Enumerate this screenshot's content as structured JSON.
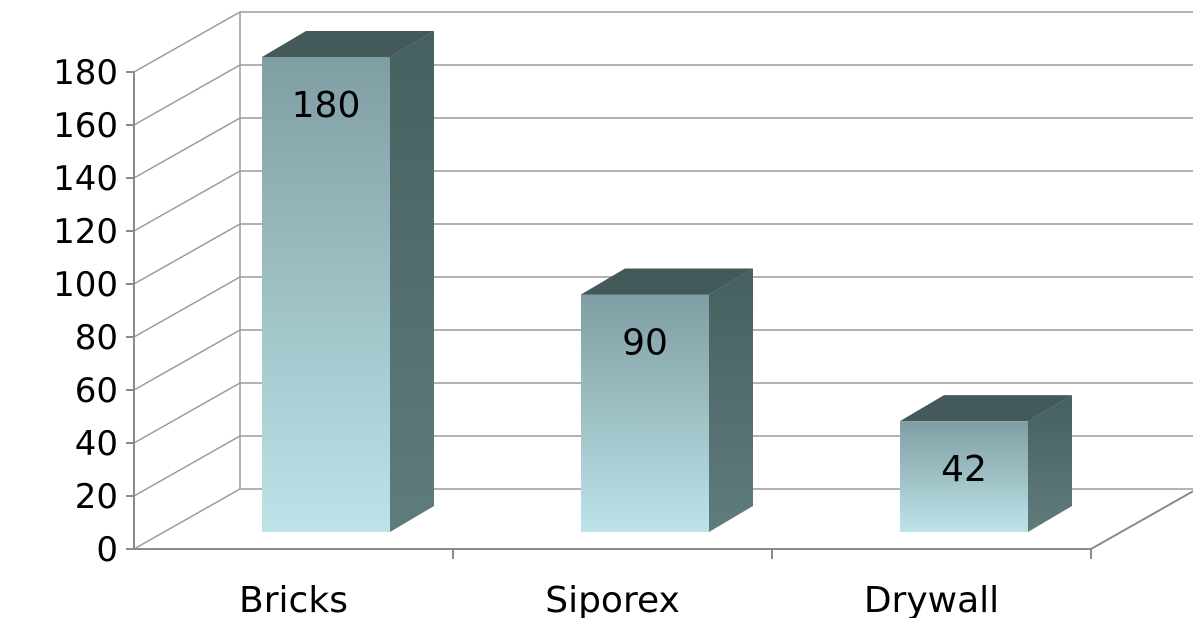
{
  "chart_data": {
    "type": "bar",
    "style": "3d-column",
    "categories": [
      "Bricks",
      "Siporex",
      "Drywall"
    ],
    "values": [
      180,
      90,
      42
    ],
    "data_labels": [
      "180",
      "90",
      "42"
    ],
    "ylim": [
      0,
      180
    ],
    "y_ticks": [
      0,
      20,
      40,
      60,
      80,
      100,
      120,
      140,
      160,
      180
    ],
    "y_tick_labels": [
      "0",
      "20",
      "40",
      "60",
      "80",
      "100",
      "120",
      "140",
      "160",
      "180"
    ],
    "grid": true,
    "legend": "none",
    "colors": {
      "front_top": "#7f9ea3",
      "front_bottom": "#bde3e8",
      "side": "#5f7c7c",
      "side_dark": "#466060",
      "top": "#445a5a"
    }
  }
}
